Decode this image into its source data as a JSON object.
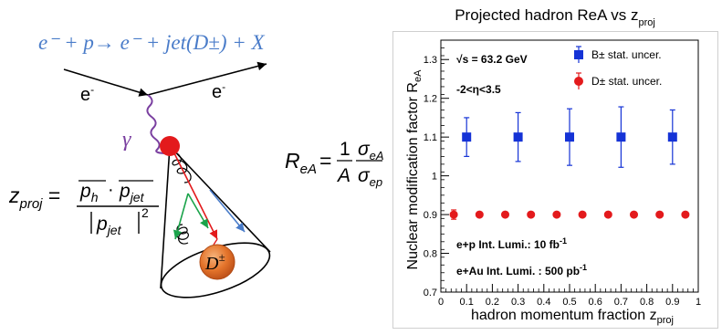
{
  "diagram": {
    "reaction": "e⁻ + p→ e⁻ + jet(D±) + X",
    "electron_in": "e",
    "electron_out": "e",
    "electron_sup": "-",
    "photon": "γ",
    "meson": "D",
    "meson_sup": "±",
    "z_formula": {
      "lhs": "z",
      "lhs_sub": "proj",
      "ph": "p",
      "ph_sub": "h",
      "dot": "·",
      "pjet": "p",
      "pjet_sub": "jet",
      "denom_p": "p",
      "denom_sub": "jet",
      "denom_pow": "2"
    },
    "r_formula": {
      "lhs": "R",
      "lhs_sub": "eA",
      "eq": "=",
      "one": "1",
      "A": "A",
      "sigma_num": "σ",
      "sigma_num_sub": "eA",
      "sigma_den": "σ",
      "sigma_den_sub": "ep"
    },
    "colors": {
      "reaction": "#4a7cc9",
      "photon": "#7a3fa0",
      "vertex": "#e31a1c",
      "meson": "#e4742b"
    }
  },
  "chart_data": {
    "type": "scatter",
    "title": "Projected hadron ReA vs z",
    "title_sub": "proj",
    "xlabel": "hadron momentum fraction z",
    "xlabel_sub": "proj",
    "ylabel": "Nuclear modification factor R",
    "ylabel_sub": "eA",
    "xlim": [
      0,
      1
    ],
    "ylim": [
      0.7,
      1.35
    ],
    "xticks": [
      "0",
      "0.1",
      "0.2",
      "0.3",
      "0.4",
      "0.5",
      "0.6",
      "0.7",
      "0.8",
      "0.9",
      "1"
    ],
    "yticks": [
      "0.7",
      "0.8",
      "0.9",
      "1",
      "1.1",
      "1.2",
      "1.3"
    ],
    "series": [
      {
        "name": "B± stat. uncer.",
        "color": "#1533d6",
        "marker": "square",
        "x": [
          0.1,
          0.3,
          0.5,
          0.7,
          0.9
        ],
        "y": [
          1.1,
          1.1,
          1.1,
          1.1,
          1.1
        ],
        "err": [
          0.05,
          0.063,
          0.073,
          0.078,
          0.07
        ]
      },
      {
        "name": "D± stat. uncer.",
        "color": "#e31a1c",
        "marker": "circle",
        "x": [
          0.05,
          0.15,
          0.25,
          0.35,
          0.45,
          0.55,
          0.65,
          0.75,
          0.85,
          0.95
        ],
        "y": [
          0.9,
          0.9,
          0.9,
          0.9,
          0.9,
          0.9,
          0.9,
          0.9,
          0.9,
          0.9
        ],
        "err": [
          0.012,
          0,
          0,
          0,
          0,
          0,
          0,
          0,
          0,
          0
        ]
      }
    ],
    "legend_position": "top-right",
    "annotations": [
      {
        "text": "√s = 63.2 GeV"
      },
      {
        "text": "-2<η<3.5"
      },
      {
        "text": "e+p Int. Lumi.: 10 fb",
        "sup": "-1"
      },
      {
        "text": "e+Au Int. Lumi. : 500 pb",
        "sup": "-1"
      }
    ]
  }
}
